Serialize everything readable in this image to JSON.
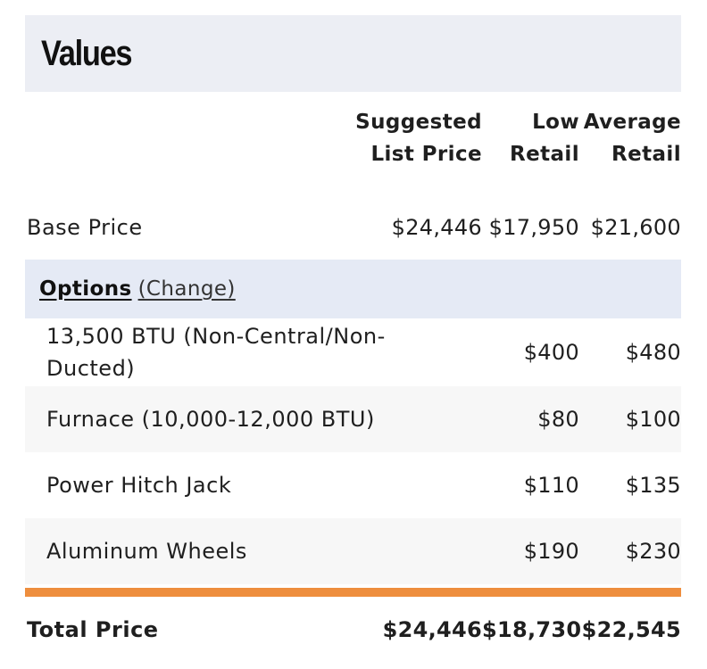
{
  "title": "Values",
  "columns": {
    "list_price_line1": "Suggested",
    "list_price_line2": "List Price",
    "low_retail_line1": "Low",
    "low_retail_line2": "Retail",
    "avg_retail_line1": "Average",
    "avg_retail_line2": "Retail"
  },
  "base": {
    "label": "Base Price",
    "list_price": "$24,446",
    "low_retail": "$17,950",
    "avg_retail": "$21,600"
  },
  "options": {
    "title": "Options",
    "change_link": "(Change)",
    "items": [
      {
        "label": "13,500 BTU (Non-Central/Non-Ducted)",
        "list_price": "",
        "low_retail": "$400",
        "avg_retail": "$480"
      },
      {
        "label": "Furnace (10,000-12,000 BTU)",
        "list_price": "",
        "low_retail": "$80",
        "avg_retail": "$100"
      },
      {
        "label": "Power Hitch Jack",
        "list_price": "",
        "low_retail": "$110",
        "avg_retail": "$135"
      },
      {
        "label": "Aluminum Wheels",
        "list_price": "",
        "low_retail": "$190",
        "avg_retail": "$230"
      }
    ]
  },
  "total": {
    "label": "Total Price",
    "list_price": "$24,446",
    "low_retail": "$18,730",
    "avg_retail": "$22,545"
  },
  "colors": {
    "title_bar_bg": "#eceef4",
    "options_bar_bg": "#e5eaf5",
    "alt_row_bg": "#f7f7f7",
    "total_rule": "#ee8e3e"
  }
}
